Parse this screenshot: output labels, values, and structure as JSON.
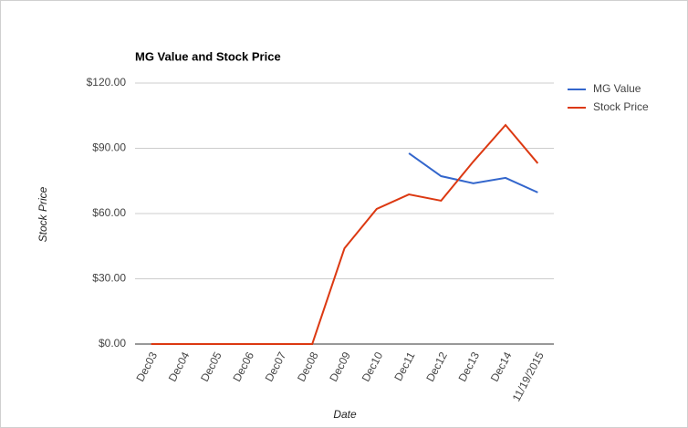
{
  "chart_data": {
    "type": "line",
    "title": "MG Value and Stock Price",
    "x_label": "Date",
    "y_label": "Stock Price",
    "categories": [
      "Dec03",
      "Dec04",
      "Dec05",
      "Dec06",
      "Dec07",
      "Dec08",
      "Dec09",
      "Dec10",
      "Dec11",
      "Dec12",
      "Dec13",
      "Dec14",
      "11/19/2015"
    ],
    "series": [
      {
        "name": "MG Value",
        "color": "#3366cc",
        "values": [
          null,
          null,
          null,
          null,
          null,
          null,
          null,
          null,
          87.7,
          77.2,
          73.9,
          76.4,
          69.7
        ]
      },
      {
        "name": "Stock Price",
        "color": "#dc3912",
        "values": [
          0,
          0,
          0,
          0,
          0,
          0,
          44,
          62.1,
          68.8,
          65.9,
          83.9,
          100.7,
          83.1
        ]
      }
    ],
    "ylim": [
      0,
      120
    ],
    "yticks": [
      {
        "value": 0,
        "label": "$0.00"
      },
      {
        "value": 30,
        "label": "$30.00"
      },
      {
        "value": 60,
        "label": "$60.00"
      },
      {
        "value": 90,
        "label": "$90.00"
      },
      {
        "value": 120,
        "label": "$120.00"
      }
    ],
    "grid": true,
    "legend": "right"
  }
}
